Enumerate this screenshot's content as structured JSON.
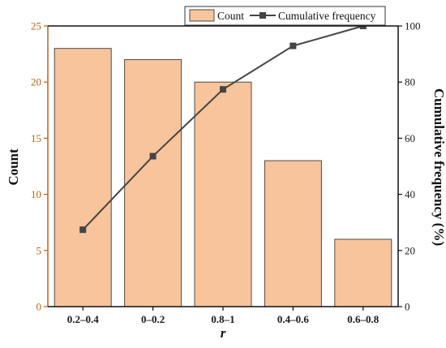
{
  "chart_data": {
    "type": "bar",
    "categories": [
      "0.2–0.4",
      "0–0.2",
      "0.8–1",
      "0.4–0.6",
      "0.6–0.8"
    ],
    "series": [
      {
        "name": "Count",
        "type": "bar",
        "axis": "left",
        "values": [
          23,
          22,
          20,
          13,
          6
        ]
      },
      {
        "name": "Cumulative frequency",
        "type": "line",
        "axis": "right",
        "values": [
          27.4,
          53.6,
          77.4,
          92.9,
          100
        ]
      }
    ],
    "xlabel": "r",
    "ylabel": "Count",
    "y2label": "Cumulative frequency (%)",
    "ylim": [
      0,
      25
    ],
    "y2lim": [
      0,
      100
    ],
    "yticks": [
      0,
      5,
      10,
      15,
      20,
      25
    ],
    "y2ticks": [
      0,
      20,
      40,
      60,
      80,
      100
    ],
    "legend_position": "top-right",
    "grid": false,
    "colors": {
      "bar_fill": "#f8c49c",
      "bar_stroke": "#4a4a4a",
      "line": "#444444",
      "left_axis": "#b5651d",
      "right_axis": "#111111"
    }
  }
}
